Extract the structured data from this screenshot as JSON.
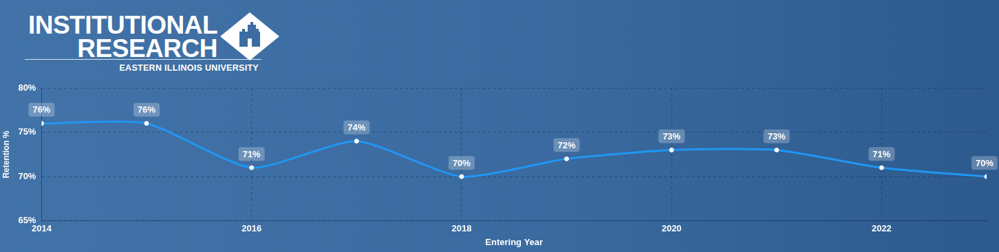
{
  "logo": {
    "line1": "INSTITUTIONAL",
    "line2": "RESEARCH",
    "org": "EASTERN ILLINOIS UNIVERSITY"
  },
  "chart_data": {
    "type": "line",
    "x": [
      2014,
      2015,
      2016,
      2017,
      2018,
      2019,
      2020,
      2021,
      2022,
      2023
    ],
    "values": [
      76,
      76,
      71,
      74,
      70,
      72,
      73,
      73,
      71,
      70
    ],
    "value_labels": [
      "76%",
      "76%",
      "71%",
      "74%",
      "70%",
      "72%",
      "73%",
      "73%",
      "71%",
      "70%"
    ],
    "x_label": "Entering Year",
    "y_label": "Retention %",
    "xlim": [
      2014,
      2023
    ],
    "xticks": [
      2014,
      2016,
      2018,
      2020,
      2022
    ],
    "ylim": [
      65,
      80
    ],
    "yticks": [
      {
        "value": 65,
        "label": "65%"
      },
      {
        "value": 70,
        "label": "70%"
      },
      {
        "value": 75,
        "label": "75%"
      },
      {
        "value": 80,
        "label": "80%"
      }
    ],
    "grid": true,
    "data_labels": true,
    "color": "#2196f3",
    "marker": "circle",
    "line_style": "solid"
  }
}
